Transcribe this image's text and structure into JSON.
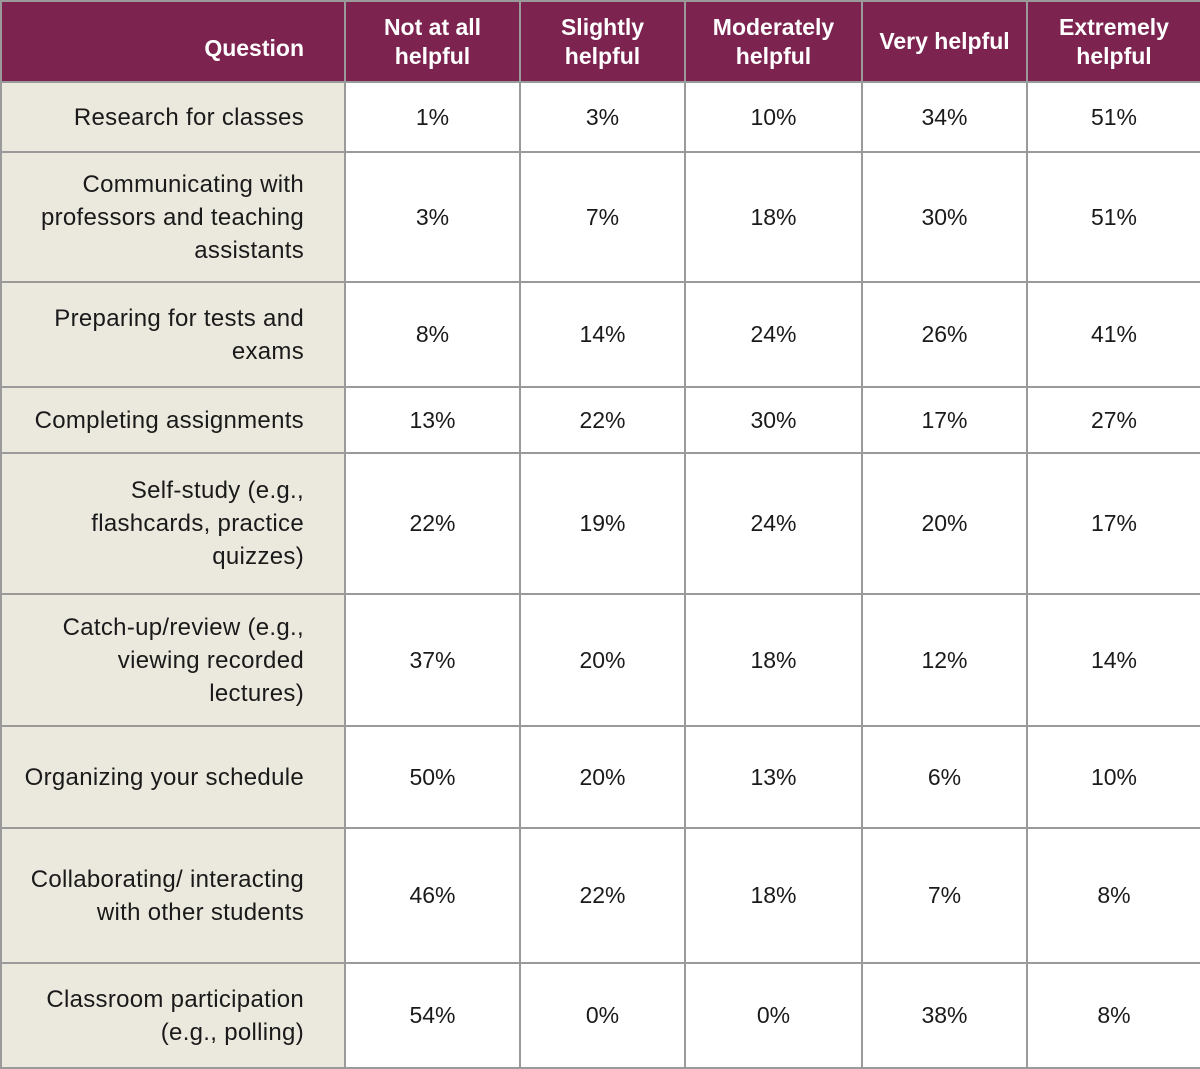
{
  "chart_data": {
    "type": "table",
    "columns": [
      "Question",
      "Not at all helpful",
      "Slightly helpful",
      "Moderately helpful",
      "Very helpful",
      "Extremely helpful"
    ],
    "rows": [
      {
        "question": "Research for classes",
        "values": [
          "1%",
          "3%",
          "10%",
          "34%",
          "51%"
        ]
      },
      {
        "question": "Communicating with professors and teaching assistants",
        "values": [
          "3%",
          "7%",
          "18%",
          "30%",
          "51%"
        ]
      },
      {
        "question": "Preparing for tests and exams",
        "values": [
          "8%",
          "14%",
          "24%",
          "26%",
          "41%"
        ]
      },
      {
        "question": "Completing assignments",
        "values": [
          "13%",
          "22%",
          "30%",
          "17%",
          "27%"
        ]
      },
      {
        "question": "Self-study (e.g., flashcards, practice quizzes)",
        "values": [
          "22%",
          "19%",
          "24%",
          "20%",
          "17%"
        ]
      },
      {
        "question": "Catch-up/review (e.g., viewing recorded lectures)",
        "values": [
          "37%",
          "20%",
          "18%",
          "12%",
          "14%"
        ]
      },
      {
        "question": "Organizing your schedule",
        "values": [
          "50%",
          "20%",
          "13%",
          "6%",
          "10%"
        ]
      },
      {
        "question": "Collaborating/ interacting with other students",
        "values": [
          "46%",
          "22%",
          "18%",
          "7%",
          "8%"
        ]
      },
      {
        "question": "Classroom participation (e.g., polling)",
        "values": [
          "54%",
          "0%",
          "0%",
          "38%",
          "8%"
        ]
      }
    ]
  },
  "colors": {
    "header_background": "#7d2350",
    "header_text": "#ffffff",
    "question_background": "#ebe8dd",
    "grid_line": "#9a9a9a"
  }
}
